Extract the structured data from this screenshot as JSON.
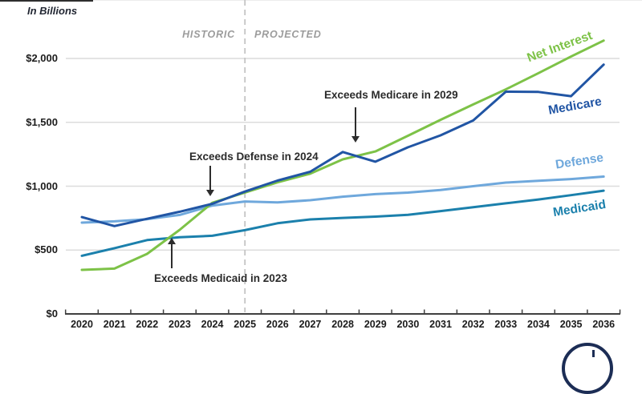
{
  "title": {
    "units_label": "In Billions"
  },
  "period_labels": {
    "historic": "HISTORIC",
    "projected": "PROJECTED"
  },
  "annotations": [
    {
      "id": "exceeds-medicare",
      "label": "Exceeds Medicare in 2029",
      "arrow_direction": "down"
    },
    {
      "id": "exceeds-defense",
      "label": "Exceeds Defense in 2024",
      "arrow_direction": "down"
    },
    {
      "id": "exceeds-medicaid",
      "label": "Exceeds Medicaid in 2023",
      "arrow_direction": "up"
    }
  ],
  "logo": {
    "name": "partial-circular-clock-logo",
    "color": "#1c2d55"
  },
  "colors": {
    "grid": "#dcdcdc",
    "axis": "#404040",
    "divider": "#c4c4c4",
    "annotation_text": "#2b2b2b",
    "period_text": "#9c9c9c"
  },
  "chart_data": {
    "type": "line",
    "title": "",
    "units": "In Billions",
    "xlabel": "",
    "ylabel": "In Billions",
    "x": [
      2020,
      2021,
      2022,
      2023,
      2024,
      2025,
      2026,
      2027,
      2028,
      2029,
      2030,
      2031,
      2032,
      2033,
      2034,
      2035,
      2036
    ],
    "ylim": [
      0,
      2250
    ],
    "grid": "horizontal",
    "divider_year": 2025,
    "divider_labels": [
      "HISTORIC",
      "PROJECTED"
    ],
    "legend_position": "inline-right",
    "y_ticks": [
      {
        "value": 0,
        "label": "$0"
      },
      {
        "value": 500,
        "label": "$500"
      },
      {
        "value": 1000,
        "label": "$1,000"
      },
      {
        "value": 1500,
        "label": "$1,500"
      },
      {
        "value": 2000,
        "label": "$2,000"
      }
    ],
    "series": [
      {
        "name": "Net Interest",
        "color": "#7dc247",
        "values": [
          345,
          355,
          470,
          658,
          870,
          950,
          1030,
          1098,
          1210,
          1272,
          1395,
          1520,
          1640,
          1758,
          1885,
          2015,
          2140
        ]
      },
      {
        "name": "Medicare",
        "color": "#2155a4",
        "values": [
          758,
          688,
          745,
          800,
          862,
          958,
          1044,
          1113,
          1268,
          1192,
          1305,
          1398,
          1515,
          1740,
          1738,
          1705,
          1952
        ]
      },
      {
        "name": "Defense",
        "color": "#6fa8dc",
        "values": [
          715,
          725,
          742,
          775,
          848,
          880,
          873,
          890,
          918,
          938,
          950,
          970,
          1000,
          1028,
          1042,
          1056,
          1075
        ]
      },
      {
        "name": "Medicaid",
        "color": "#1b80ac",
        "values": [
          455,
          515,
          578,
          600,
          612,
          656,
          710,
          740,
          752,
          762,
          776,
          805,
          836,
          866,
          896,
          930,
          965
        ]
      }
    ]
  }
}
